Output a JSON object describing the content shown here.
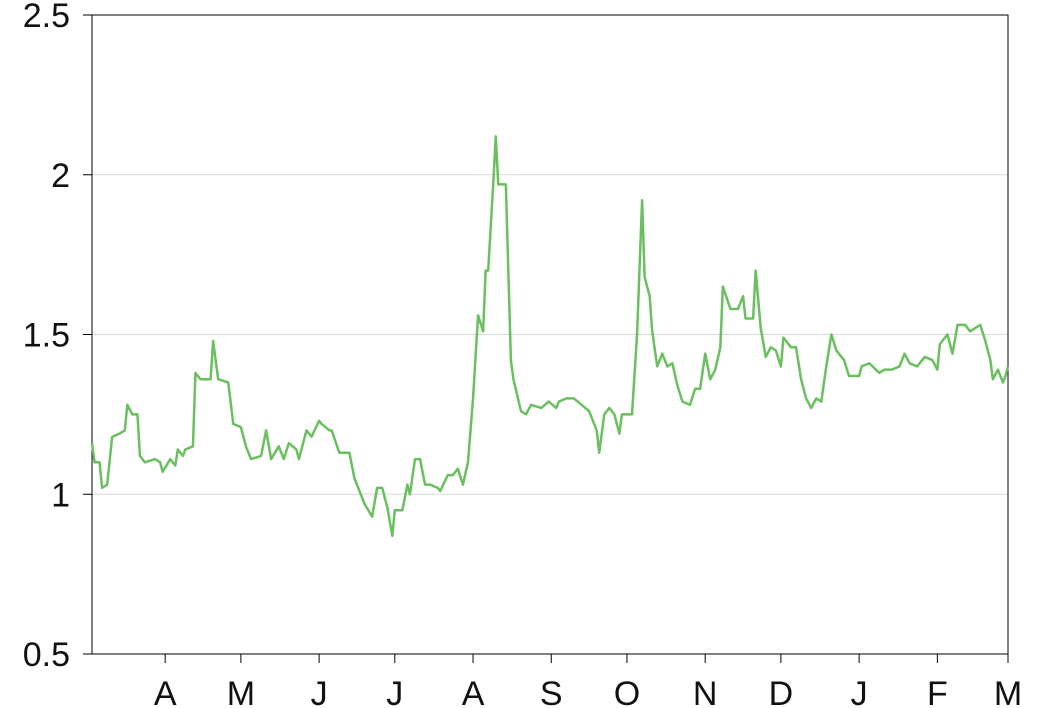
{
  "chart_data": {
    "type": "line",
    "color": "#6abf5f",
    "grid": true,
    "xlim": [
      0,
      363
    ],
    "xticks": [
      {
        "value": 29,
        "label": "A"
      },
      {
        "value": 59,
        "label": "M"
      },
      {
        "value": 90,
        "label": "J"
      },
      {
        "value": 120,
        "label": "J"
      },
      {
        "value": 151,
        "label": "A"
      },
      {
        "value": 182,
        "label": "S"
      },
      {
        "value": 212,
        "label": "O"
      },
      {
        "value": 243,
        "label": "N"
      },
      {
        "value": 273,
        "label": "D"
      },
      {
        "value": 304,
        "label": "J"
      },
      {
        "value": 335,
        "label": "F"
      },
      {
        "value": 363,
        "label": "M"
      }
    ],
    "ylim": [
      0.5,
      2.5
    ],
    "yticks": [
      0.5,
      1,
      1.5,
      2,
      2.5
    ],
    "x": [
      0,
      1,
      3,
      4,
      6,
      8,
      11,
      13,
      14,
      16,
      18,
      19,
      21,
      25,
      27,
      28,
      31,
      33,
      34,
      36,
      37,
      40,
      41,
      43,
      47,
      48,
      50,
      54,
      56,
      59,
      61,
      63,
      67,
      69,
      71,
      74,
      76,
      78,
      81,
      82,
      85,
      87,
      90,
      91,
      94,
      95,
      98,
      102,
      104,
      106,
      108,
      111,
      113,
      115,
      117,
      119,
      120,
      123,
      125,
      126,
      128,
      130,
      132,
      134,
      137,
      138,
      141,
      143,
      145,
      147,
      149,
      151,
      153,
      155,
      156,
      157,
      159,
      160,
      161,
      164,
      166,
      167,
      170,
      172,
      174,
      178,
      181,
      184,
      185,
      188,
      191,
      194,
      197,
      200,
      201,
      203,
      205,
      207,
      209,
      210,
      214,
      216,
      218,
      219,
      221,
      222,
      224,
      226,
      228,
      230,
      232,
      234,
      237,
      239,
      241,
      243,
      245,
      247,
      249,
      250,
      253,
      256,
      258,
      259,
      262,
      263,
      265,
      267,
      269,
      271,
      273,
      274,
      277,
      279,
      281,
      283,
      285,
      287,
      289,
      291,
      293,
      295,
      298,
      300,
      304,
      305,
      308,
      312,
      314,
      317,
      320,
      322,
      324,
      327,
      330,
      333,
      335,
      336,
      339,
      341,
      343,
      346,
      348,
      350,
      352,
      354,
      356,
      357,
      359,
      361,
      362,
      363
    ],
    "values": [
      1.16,
      1.1,
      1.1,
      1.02,
      1.03,
      1.18,
      1.19,
      1.2,
      1.28,
      1.25,
      1.25,
      1.12,
      1.1,
      1.11,
      1.1,
      1.07,
      1.11,
      1.09,
      1.14,
      1.12,
      1.14,
      1.15,
      1.38,
      1.36,
      1.36,
      1.48,
      1.36,
      1.35,
      1.22,
      1.21,
      1.15,
      1.11,
      1.12,
      1.2,
      1.11,
      1.15,
      1.11,
      1.16,
      1.14,
      1.11,
      1.2,
      1.18,
      1.23,
      1.22,
      1.2,
      1.2,
      1.13,
      1.13,
      1.05,
      1.01,
      0.97,
      0.93,
      1.02,
      1.02,
      0.96,
      0.87,
      0.95,
      0.95,
      1.03,
      1.0,
      1.11,
      1.11,
      1.03,
      1.03,
      1.02,
      1.01,
      1.06,
      1.06,
      1.08,
      1.03,
      1.1,
      1.3,
      1.56,
      1.51,
      1.7,
      1.7,
      1.97,
      2.12,
      1.97,
      1.97,
      1.42,
      1.36,
      1.26,
      1.25,
      1.28,
      1.27,
      1.29,
      1.27,
      1.29,
      1.3,
      1.3,
      1.28,
      1.26,
      1.2,
      1.13,
      1.25,
      1.27,
      1.25,
      1.19,
      1.25,
      1.25,
      1.5,
      1.92,
      1.68,
      1.62,
      1.51,
      1.4,
      1.44,
      1.4,
      1.41,
      1.34,
      1.29,
      1.28,
      1.33,
      1.33,
      1.44,
      1.36,
      1.39,
      1.46,
      1.65,
      1.58,
      1.58,
      1.62,
      1.55,
      1.55,
      1.7,
      1.52,
      1.43,
      1.46,
      1.45,
      1.4,
      1.49,
      1.46,
      1.46,
      1.36,
      1.3,
      1.27,
      1.3,
      1.29,
      1.4,
      1.5,
      1.45,
      1.42,
      1.37,
      1.37,
      1.4,
      1.41,
      1.38,
      1.39,
      1.39,
      1.4,
      1.44,
      1.41,
      1.4,
      1.43,
      1.42,
      1.39,
      1.47,
      1.5,
      1.44,
      1.53,
      1.53,
      1.51,
      1.52,
      1.53,
      1.48,
      1.42,
      1.36,
      1.39,
      1.35,
      1.37,
      1.4
    ]
  }
}
